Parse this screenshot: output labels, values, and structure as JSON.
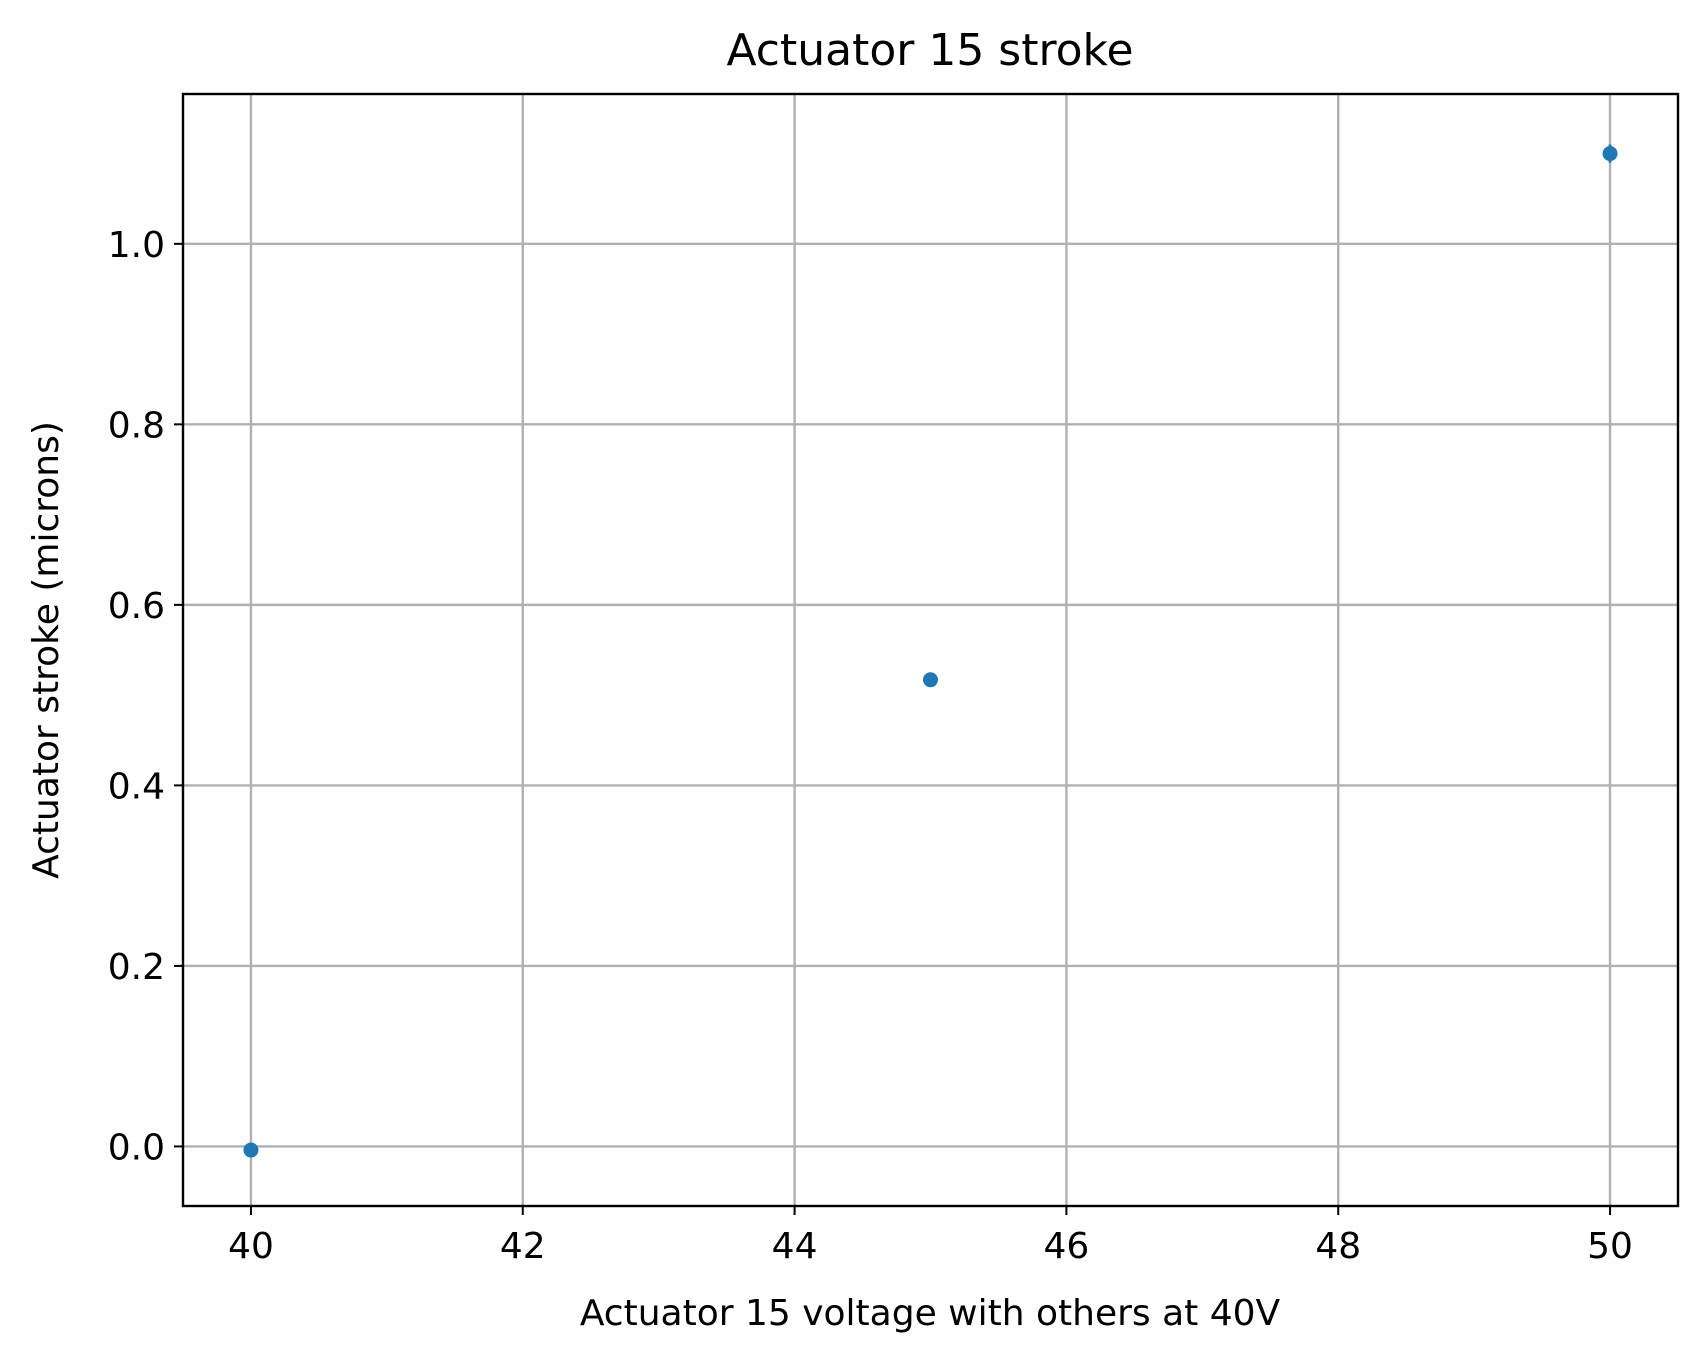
{
  "chart_data": {
    "type": "scatter",
    "title": "Actuator 15 stroke",
    "xlabel": "Actuator 15 voltage with others at 40V",
    "ylabel": "Actuator stroke (microns)",
    "xlim": [
      39.5,
      50.5
    ],
    "ylim": [
      -0.066,
      1.166
    ],
    "xticks": [
      40,
      42,
      44,
      46,
      48,
      50
    ],
    "xtick_labels": [
      "40",
      "42",
      "44",
      "46",
      "48",
      "50"
    ],
    "yticks": [
      0.0,
      0.2,
      0.4,
      0.6,
      0.8,
      1.0
    ],
    "ytick_labels": [
      "0.0",
      "0.2",
      "0.4",
      "0.6",
      "0.8",
      "1.0"
    ],
    "grid": true,
    "series": [
      {
        "color": "#1f77b4",
        "x": [
          40,
          45,
          50
        ],
        "y": [
          -0.004,
          0.517,
          1.1
        ],
        "yerr": [
          0.0,
          0.0,
          0.01
        ]
      }
    ]
  }
}
